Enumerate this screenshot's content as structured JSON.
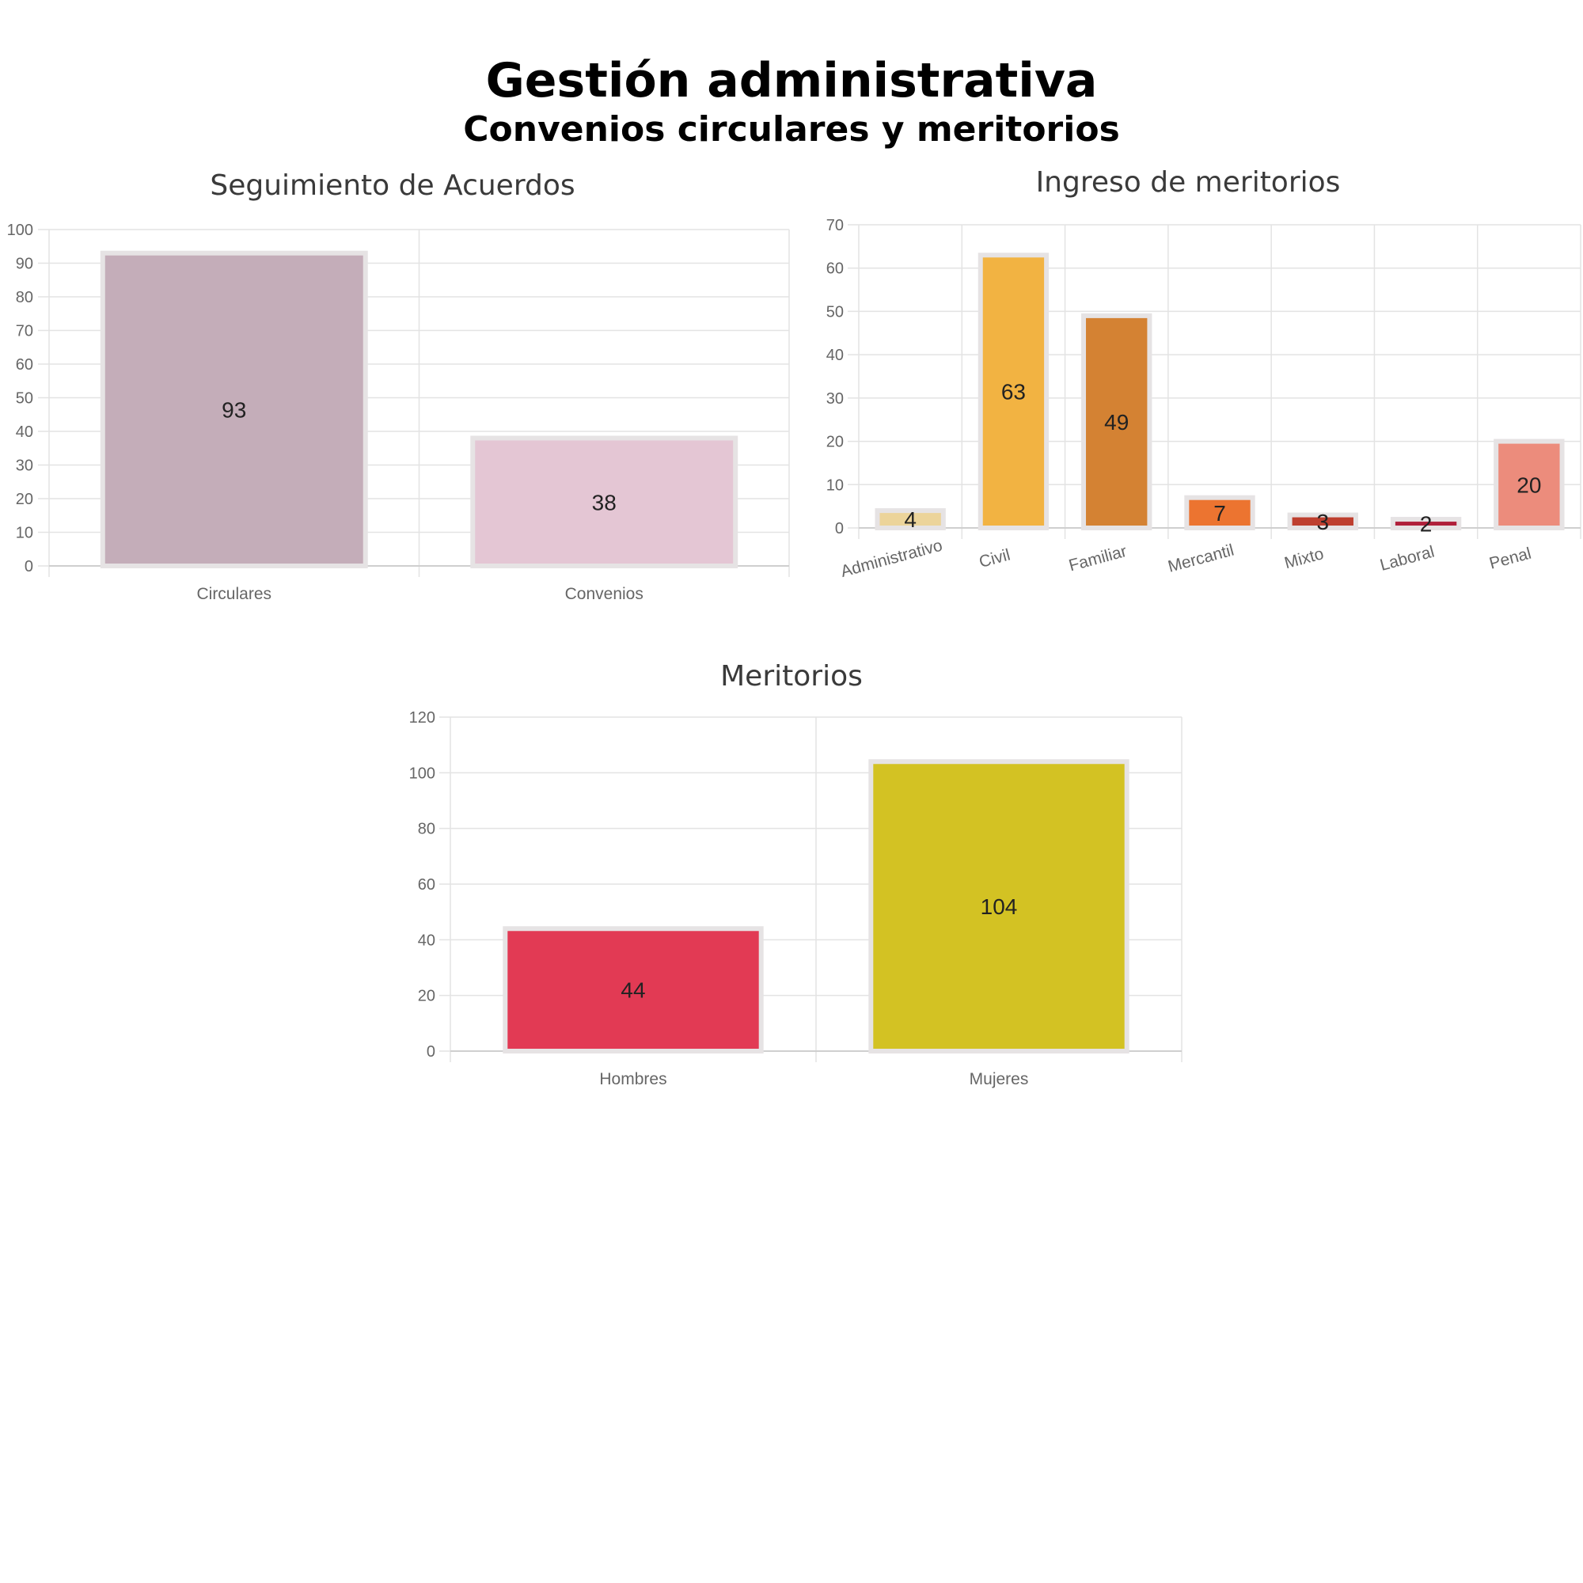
{
  "header": {
    "title": "Gestión administrativa",
    "subtitle": "Convenios circulares y meritorios"
  },
  "chart_data": [
    {
      "type": "bar",
      "title": "Seguimiento de Acuerdos",
      "categories": [
        "Circulares",
        "Convenios"
      ],
      "values": [
        93,
        38
      ],
      "data_labels": [
        "93",
        "38"
      ],
      "colors": [
        "#c4adb9",
        "#e4c6d4"
      ],
      "ylim": [
        0,
        100
      ],
      "yticks": [
        0,
        10,
        20,
        30,
        40,
        50,
        60,
        70,
        80,
        90,
        100
      ],
      "grid": true
    },
    {
      "type": "bar",
      "title": "Ingreso de meritorios",
      "categories": [
        "Administrativo",
        "Civil",
        "Familiar",
        "Mercantil",
        "Mixto",
        "Laboral",
        "Penal"
      ],
      "values": [
        4,
        63,
        49,
        7,
        3,
        2,
        20
      ],
      "data_labels": [
        "4",
        "63",
        "49",
        "7",
        "3",
        "2",
        "20"
      ],
      "colors": [
        "#ecd49a",
        "#f2b342",
        "#d48233",
        "#ec7430",
        "#be3f2f",
        "#b0203a",
        "#ec8c7c"
      ],
      "ylim": [
        0,
        70
      ],
      "yticks": [
        0,
        10,
        20,
        30,
        40,
        50,
        60,
        70
      ],
      "grid": true
    },
    {
      "type": "bar",
      "title": "Meritorios",
      "categories": [
        "Hombres",
        "Mujeres"
      ],
      "values": [
        44,
        104
      ],
      "data_labels": [
        "44",
        "104"
      ],
      "colors": [
        "#e23a54",
        "#d3c223"
      ],
      "ylim": [
        0,
        120
      ],
      "yticks": [
        0,
        20,
        40,
        60,
        80,
        100,
        120
      ],
      "grid": true
    }
  ]
}
